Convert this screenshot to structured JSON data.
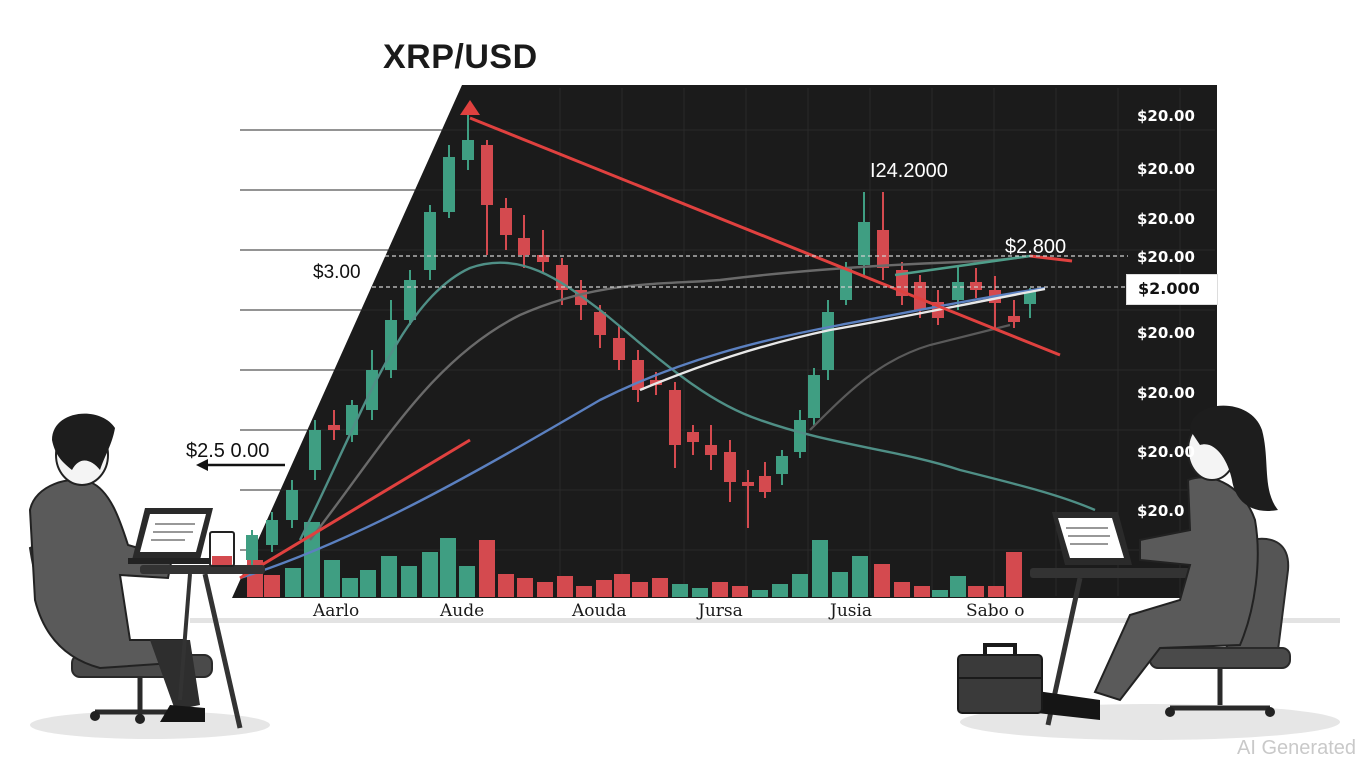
{
  "title": "XRP/USD",
  "left_labels": {
    "upper": "$3.00",
    "lower": "$2.5 0.00"
  },
  "chart_labels": {
    "peak": "I24.2000",
    "resistance": "$2.800"
  },
  "right_axis": [
    "$20.00",
    "$20.00",
    "$20.00",
    "$20.00",
    "$20.00",
    "$20.00",
    "$20.00",
    "$20.0"
  ],
  "current_price": "$2.000",
  "x_axis": [
    "Aarlo",
    "Aude",
    "Aouda",
    "Jursa",
    "Jusia",
    "Sabo o"
  ],
  "watermark": "AI Generated",
  "colors": {
    "background": "#1b1b1b",
    "bull": "#3f9e82",
    "bear": "#d44a4f",
    "trendline": "#e0413f",
    "ma_teal": "#4f8f86",
    "ma_gray": "#6e6e6e",
    "ma_white": "#e8e8e8",
    "ma_blue": "#5b80c0"
  },
  "people": [
    {
      "role": "trader-left",
      "icon": "person-with-laptop-icon"
    },
    {
      "role": "trader-right",
      "icon": "person-with-laptop-icon"
    }
  ]
}
